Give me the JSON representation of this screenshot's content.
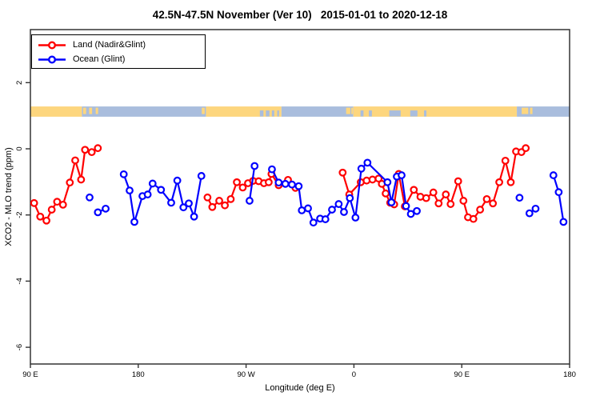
{
  "title": "42.5N-47.5N November (Ver 10)   2015-01-01 to 2020-12-18",
  "legend": {
    "items": [
      {
        "label": "Land (Nadir&Glint)",
        "color": "#ff0000"
      },
      {
        "label": "Ocean (Glint)",
        "color": "#0000ff"
      }
    ]
  },
  "axes": {
    "x": {
      "label": "Longitude (deg E)",
      "ticks": [
        {
          "value": 90,
          "label": "90 E"
        },
        {
          "value": 180,
          "label": "180"
        },
        {
          "value": 270,
          "label": "90 W"
        },
        {
          "value": 360,
          "label": "0"
        },
        {
          "value": 450,
          "label": "90 E"
        },
        {
          "value": 540,
          "label": "180"
        }
      ]
    },
    "y": {
      "label": "XCO2 - MLO trend (ppm)",
      "ticks": [
        {
          "value": 2,
          "label": "2"
        },
        {
          "value": 0,
          "label": "0"
        },
        {
          "value": -2,
          "label": "-2"
        },
        {
          "value": -4,
          "label": "-4"
        },
        {
          "value": -6,
          "label": "-6"
        }
      ]
    }
  },
  "chart_data": {
    "type": "line",
    "title": "42.5N-47.5N November (Ver 10)   2015-01-01 to 2020-12-18",
    "xlabel": "Longitude (deg E)",
    "ylabel": "XCO2 - MLO trend (ppm)",
    "xlim": [
      90,
      540
    ],
    "ylim": [
      -6.5,
      3.6
    ],
    "grid": false,
    "legend_position": "top-left",
    "marker": "open-circle",
    "series": [
      {
        "name": "Land (Nadir&Glint)",
        "color": "#ff0000",
        "segments": [
          [
            [
              93.1,
              -1.64
            ],
            [
              98.2,
              -2.05
            ],
            [
              103.4,
              -2.17
            ],
            [
              107.8,
              -1.84
            ],
            [
              112.3,
              -1.6
            ],
            [
              117.2,
              -1.69
            ],
            [
              122.9,
              -1.02
            ],
            [
              127.4,
              -0.35
            ],
            [
              132.3,
              -0.93
            ],
            [
              135.6,
              -0.03
            ],
            [
              141.2,
              -0.1
            ],
            [
              146.3,
              0.02
            ]
          ],
          [
            [
              237.8,
              -1.47
            ],
            [
              241.8,
              -1.76
            ],
            [
              247.6,
              -1.57
            ],
            [
              252.3,
              -1.71
            ],
            [
              257.2,
              -1.52
            ],
            [
              262.3,
              -1.01
            ],
            [
              267.2,
              -1.17
            ],
            [
              271.6,
              -1.04
            ],
            [
              275.8,
              -0.97
            ],
            [
              280.5,
              -0.98
            ],
            [
              284.9,
              -1.04
            ],
            [
              288.9,
              -1.01
            ],
            [
              291.2,
              -0.76
            ],
            [
              297.2,
              -1.1
            ],
            [
              305,
              -0.94
            ],
            [
              311.2,
              -1.18
            ]
          ],
          [
            [
              350.6,
              -0.72
            ],
            [
              356.1,
              -1.38
            ],
            [
              365.7,
              -1.01
            ],
            [
              370.6,
              -0.96
            ],
            [
              375.5,
              -0.93
            ],
            [
              380.6,
              -0.9
            ],
            [
              383.3,
              -1.06
            ],
            [
              386.5,
              -1.35
            ],
            [
              390.3,
              -1.63
            ],
            [
              393.6,
              -1.68
            ],
            [
              397.4,
              -0.76
            ],
            [
              402.5,
              -1.74
            ],
            [
              410,
              -1.24
            ],
            [
              415.5,
              -1.45
            ],
            [
              420.3,
              -1.49
            ],
            [
              426.3,
              -1.32
            ],
            [
              430.7,
              -1.65
            ],
            [
              436.7,
              -1.38
            ],
            [
              440.7,
              -1.67
            ],
            [
              447,
              -0.98
            ],
            [
              451.4,
              -1.57
            ],
            [
              455.2,
              -2.07
            ],
            [
              459.7,
              -2.12
            ],
            [
              465.3,
              -1.84
            ],
            [
              470.9,
              -1.52
            ],
            [
              476,
              -1.65
            ],
            [
              481.3,
              -1.01
            ],
            [
              486.4,
              -0.36
            ],
            [
              490.9,
              -1.01
            ],
            [
              495.3,
              -0.08
            ],
            [
              499.8,
              -0.1
            ],
            [
              503.4,
              0.02
            ]
          ]
        ]
      },
      {
        "name": "Ocean (Glint)",
        "color": "#0000ff",
        "segments": [
          [
            [
              139.4,
              -1.47
            ]
          ],
          [
            [
              146.3,
              -1.92
            ],
            [
              152.8,
              -1.81
            ]
          ],
          [
            [
              167.9,
              -0.77
            ],
            [
              172.8,
              -1.26
            ],
            [
              176.8,
              -2.21
            ],
            [
              183.5,
              -1.43
            ],
            [
              187.9,
              -1.38
            ],
            [
              192,
              -1.05
            ],
            [
              199,
              -1.24
            ],
            [
              207.5,
              -1.63
            ],
            [
              212.6,
              -0.96
            ],
            [
              217.7,
              -1.77
            ],
            [
              222.2,
              -1.65
            ],
            [
              226.6,
              -2.05
            ],
            [
              232.7,
              -0.82
            ]
          ],
          [
            [
              272.9,
              -1.57
            ],
            [
              277.1,
              -0.52
            ]
          ],
          [
            [
              291.6,
              -0.62
            ],
            [
              297.2,
              -1.02
            ],
            [
              302.8,
              -1.06
            ],
            [
              308.3,
              -1.08
            ],
            [
              313.9,
              -1.13
            ],
            [
              316.5,
              -1.86
            ],
            [
              321.7,
              -1.8
            ],
            [
              326.2,
              -2.23
            ],
            [
              331.8,
              -2.11
            ],
            [
              336.2,
              -2.13
            ],
            [
              341.7,
              -1.84
            ],
            [
              347.3,
              -1.67
            ],
            [
              351.7,
              -1.91
            ],
            [
              356.6,
              -1.49
            ],
            [
              361.3,
              -2.08
            ],
            [
              366.2,
              -0.6
            ],
            [
              371.3,
              -0.42
            ],
            [
              388,
              -1.01
            ],
            [
              391.3,
              -1.62
            ],
            [
              395.8,
              -0.84
            ],
            [
              399.8,
              -0.8
            ],
            [
              403.5,
              -1.73
            ],
            [
              407.5,
              -1.97
            ],
            [
              412.5,
              -1.88
            ]
          ],
          [
            [
              498.2,
              -1.48
            ]
          ],
          [
            [
              506.5,
              -1.95
            ],
            [
              511.6,
              -1.81
            ]
          ],
          [
            [
              526.5,
              -0.8
            ],
            [
              530.9,
              -1.31
            ],
            [
              534.9,
              -2.21
            ]
          ]
        ]
      }
    ]
  },
  "map_strip": {
    "description": "coastline band at 42.5N-47.5N",
    "y_range": [
      0.97,
      1.28
    ],
    "land_color": "#fdd67e",
    "ocean_color": "#a9bddd",
    "segments": [
      {
        "from": 90,
        "to": 133,
        "type": "land"
      },
      {
        "from": 133,
        "to": 236.5,
        "type": "ocean"
      },
      {
        "from": 236.5,
        "to": 299.5,
        "type": "land"
      },
      {
        "from": 299.5,
        "to": 359.5,
        "type": "ocean"
      },
      {
        "from": 359.5,
        "to": 496,
        "type": "land"
      },
      {
        "from": 496,
        "to": 540,
        "type": "ocean"
      }
    ],
    "islands": [
      {
        "from": 134,
        "to": 136.5
      },
      {
        "from": 139,
        "to": 141.5
      },
      {
        "from": 144.5,
        "to": 146.5
      },
      {
        "from": 233,
        "to": 235.5
      },
      {
        "from": 353.5,
        "to": 357
      },
      {
        "from": 357.8,
        "to": 359.2
      },
      {
        "from": 500,
        "to": 505.5
      },
      {
        "from": 507,
        "to": 509
      }
    ],
    "lakes": [
      {
        "from": 281.5,
        "to": 284.5
      },
      {
        "from": 286.5,
        "to": 289.5
      },
      {
        "from": 291.5,
        "to": 293.5
      },
      {
        "from": 296,
        "to": 297.5
      },
      {
        "from": 365.5,
        "to": 368
      },
      {
        "from": 372.5,
        "to": 375
      },
      {
        "from": 389.5,
        "to": 399
      },
      {
        "from": 407,
        "to": 413
      },
      {
        "from": 418.5,
        "to": 420.5
      }
    ]
  }
}
